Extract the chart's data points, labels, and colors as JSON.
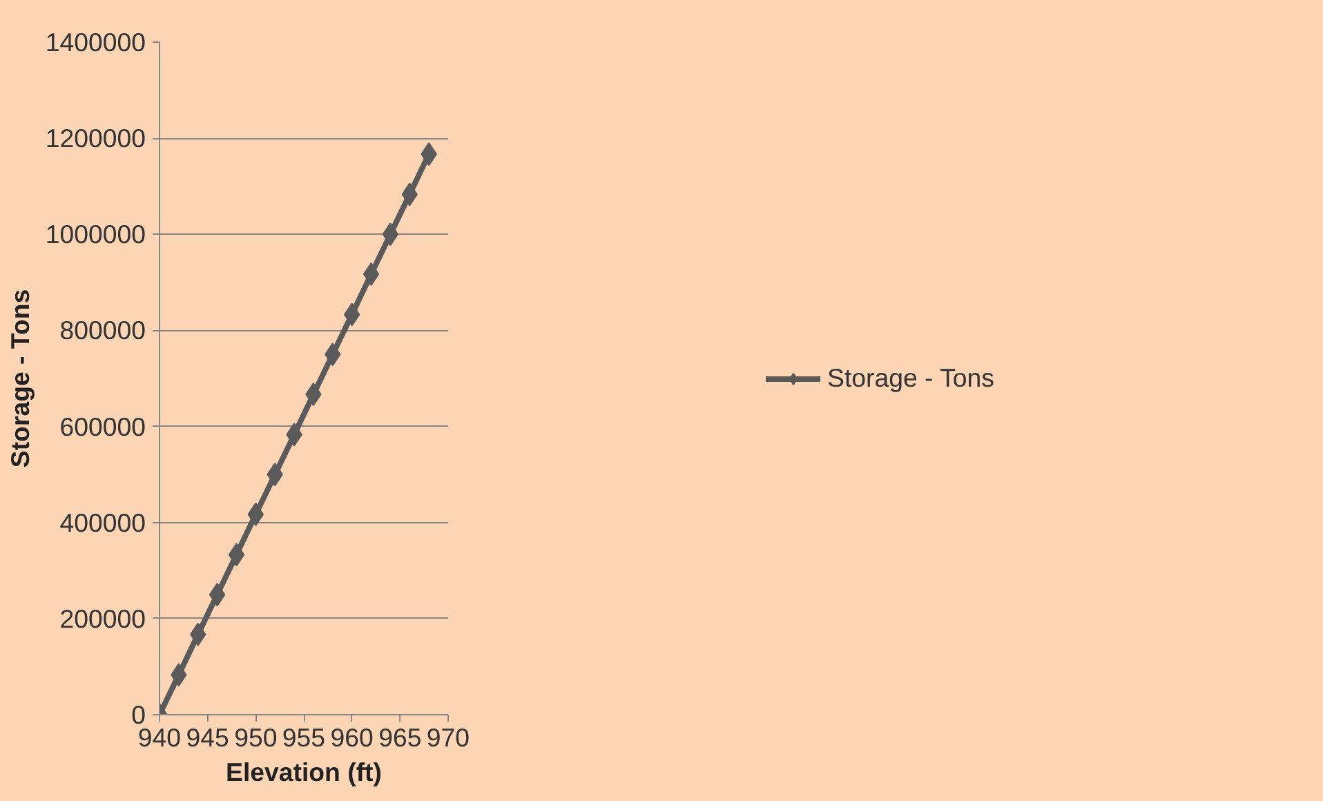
{
  "chart_data": {
    "type": "line",
    "xlabel": "Elevation (ft)",
    "ylabel": "Storage - Tons",
    "x": [
      940,
      942,
      944,
      946,
      948,
      950,
      952,
      954,
      956,
      958,
      960,
      962,
      964,
      966,
      968
    ],
    "series": [
      {
        "name": "Storage - Tons",
        "color": "#5a5a5a",
        "values": [
          0,
          83000,
          167000,
          250000,
          333000,
          417000,
          500000,
          583000,
          667000,
          750000,
          833000,
          917000,
          1000000,
          1083000,
          1167000
        ]
      }
    ],
    "xlim": [
      940,
      970
    ],
    "xticks": [
      940,
      945,
      950,
      955,
      960,
      965,
      970
    ],
    "ylim": [
      0,
      1400000
    ],
    "yticks": [
      0,
      200000,
      400000,
      600000,
      800000,
      1000000,
      1200000,
      1400000
    ],
    "grid": "y",
    "legend": "right",
    "marker": "diamond",
    "line_style": "solid"
  }
}
